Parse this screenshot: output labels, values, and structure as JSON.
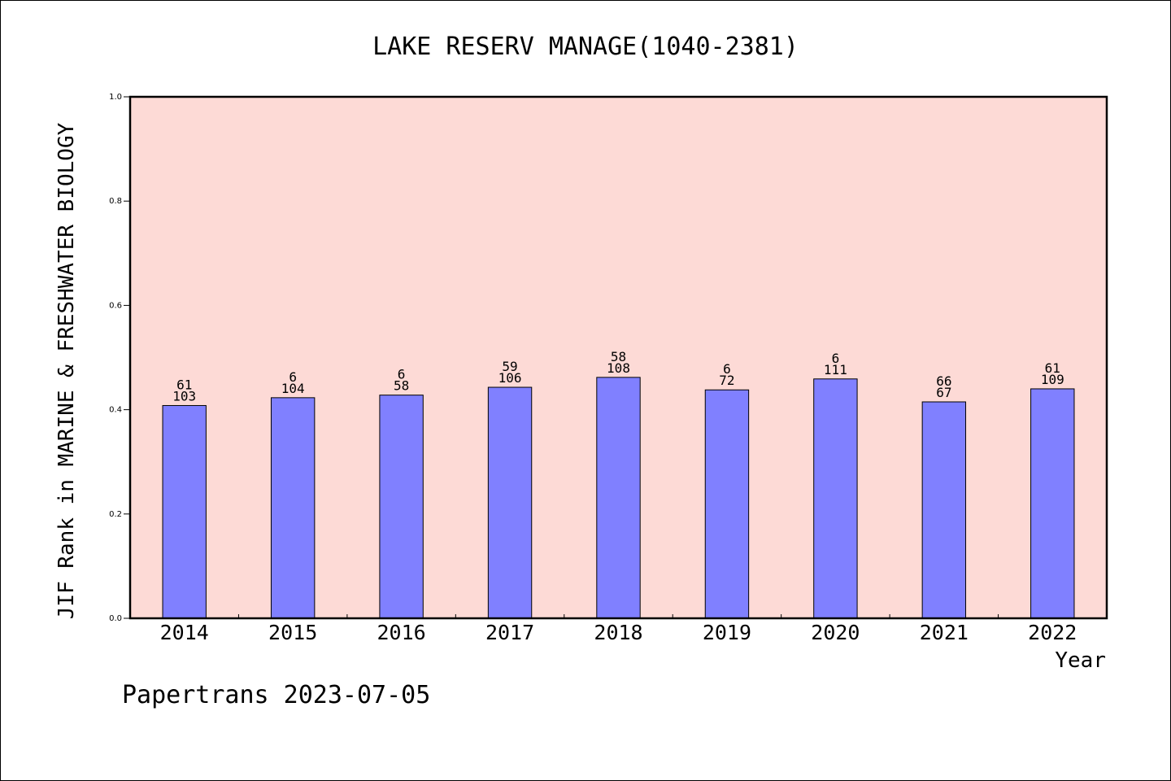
{
  "chart_data": {
    "type": "bar",
    "title": "LAKE RESERV MANAGE(1040-2381)",
    "xlabel": "Year",
    "ylabel": "JIF Rank in MARINE & FRESHWATER BIOLOGY",
    "ylim": [
      0,
      1.0
    ],
    "yticks": [
      "0.0",
      "0.2",
      "0.4",
      "0.6",
      "0.8",
      "1.0"
    ],
    "categories": [
      "2014",
      "2015",
      "2016",
      "2017",
      "2018",
      "2019",
      "2020",
      "2021",
      "2022"
    ],
    "values": [
      0.408,
      0.423,
      0.428,
      0.443,
      0.462,
      0.438,
      0.459,
      0.415,
      0.44
    ],
    "label_top": [
      "61",
      "6",
      "6",
      "59",
      "58",
      "6",
      "6",
      "66",
      "61"
    ],
    "label_bottom": [
      "103",
      "104",
      "58",
      "106",
      "108",
      "72",
      "111",
      "67",
      "109"
    ],
    "grid": false,
    "colors": {
      "bar": "#8080ff",
      "plot_background": "#fddad6"
    }
  },
  "footer": {
    "text": "Papertrans 2023-07-05"
  }
}
